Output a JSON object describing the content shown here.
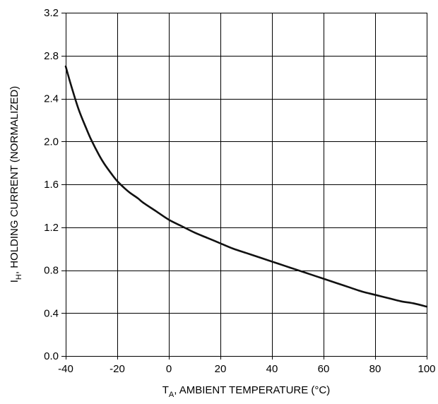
{
  "chart_data": {
    "type": "line",
    "title": "",
    "xlabel": {
      "main": "T",
      "sub": "A",
      "rest": ", AMBIENT TEMPERATURE (°C)"
    },
    "ylabel": {
      "main": "I",
      "sub": "H",
      "rest": ", HOLDING CURRENT (NORMALIZED)"
    },
    "xlim": [
      -40,
      100
    ],
    "ylim": [
      0.0,
      3.2
    ],
    "x_ticks": [
      -40,
      -20,
      0,
      20,
      40,
      60,
      80,
      100
    ],
    "x_tick_labels": [
      "-40",
      "-20",
      "0",
      "20",
      "40",
      "60",
      "80",
      "100"
    ],
    "y_ticks": [
      0.0,
      0.4,
      0.8,
      1.2,
      1.6,
      2.0,
      2.4,
      2.8,
      3.2
    ],
    "y_tick_labels": [
      "0.0",
      "0.4",
      "0.8",
      "1.2",
      "1.6",
      "2.0",
      "2.4",
      "2.8",
      "3.2"
    ],
    "grid": true,
    "series": [
      {
        "color": "#111111",
        "x": [
          -40,
          -38,
          -35,
          -32,
          -30,
          -27,
          -25,
          -22,
          -20,
          -17,
          -15,
          -12,
          -10,
          -5,
          0,
          5,
          10,
          15,
          20,
          25,
          30,
          35,
          40,
          45,
          50,
          55,
          60,
          65,
          70,
          75,
          80,
          85,
          90,
          95,
          100
        ],
        "y": [
          2.7,
          2.53,
          2.3,
          2.12,
          2.01,
          1.87,
          1.79,
          1.69,
          1.63,
          1.56,
          1.52,
          1.47,
          1.43,
          1.35,
          1.27,
          1.21,
          1.15,
          1.1,
          1.05,
          1.0,
          0.96,
          0.92,
          0.88,
          0.84,
          0.8,
          0.76,
          0.72,
          0.68,
          0.64,
          0.6,
          0.57,
          0.54,
          0.51,
          0.49,
          0.46
        ]
      }
    ]
  }
}
